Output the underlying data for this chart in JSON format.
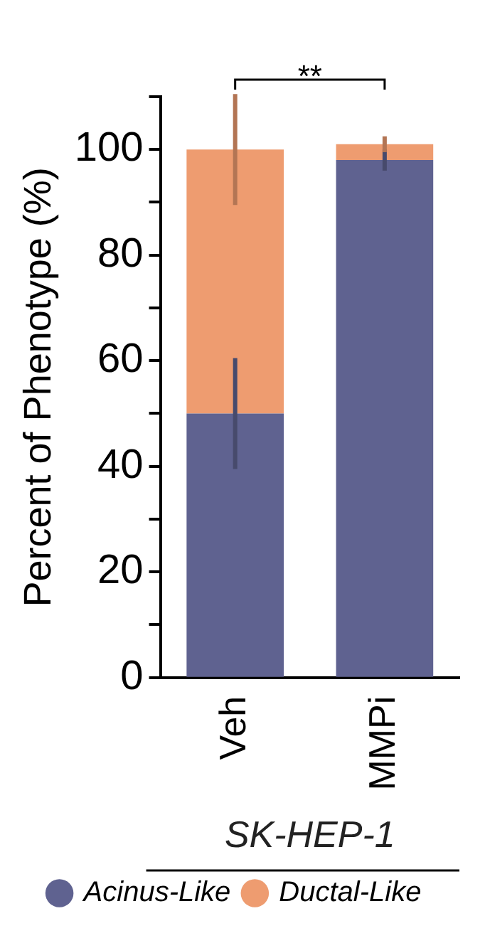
{
  "chart_data": {
    "type": "bar",
    "stacked": true,
    "categories": [
      "Veh",
      "MMPi"
    ],
    "series": [
      {
        "name": "Acinus-Like",
        "color": "#5f6290",
        "values": [
          50,
          98
        ],
        "errors": [
          10.5,
          2
        ]
      },
      {
        "name": "Ductal-Like",
        "color": "#ee9c70",
        "values": [
          50,
          3
        ],
        "errors": [
          10.5,
          1.5
        ]
      }
    ],
    "ylabel": "Percent of Phenotype (%)",
    "xlabel": "SK-HEP-1",
    "ylim": [
      0,
      110
    ],
    "yticks": [
      0,
      {
        "value": 10,
        "label": null
      },
      20,
      {
        "value": 30,
        "label": null
      },
      40,
      {
        "value": 50,
        "label": null
      },
      60,
      {
        "value": 70,
        "label": null
      },
      80,
      {
        "value": 90,
        "label": null
      },
      100,
      {
        "value": 110,
        "label": null
      }
    ],
    "annotations": [
      "**"
    ],
    "legend": "bottom",
    "grid": false
  }
}
